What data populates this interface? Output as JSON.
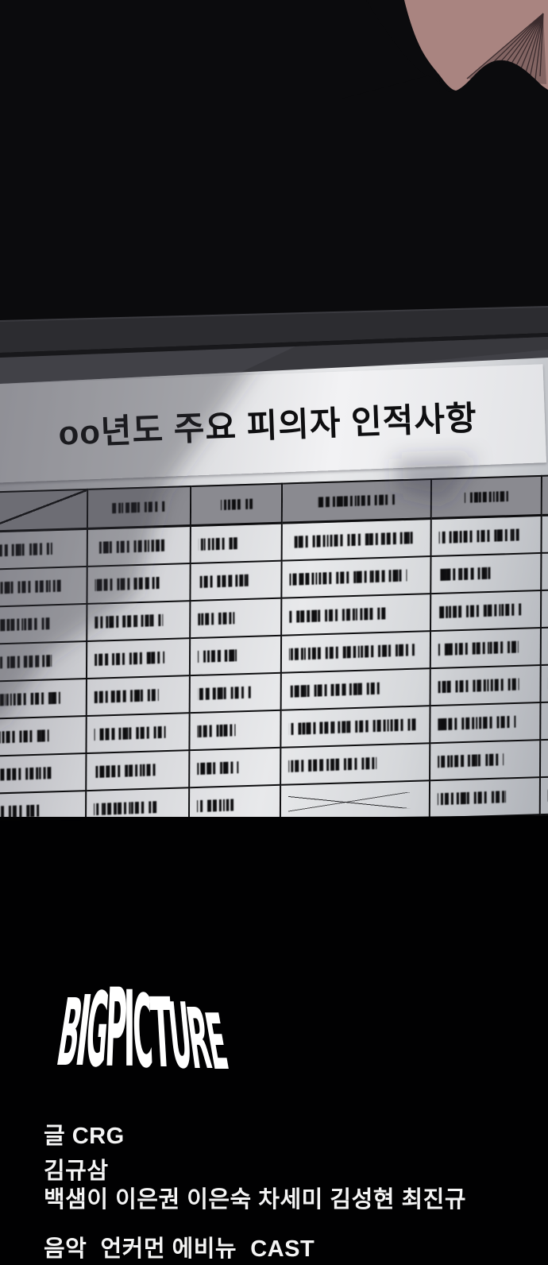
{
  "document": {
    "title": "oo년도 주요 피의자 인적사항",
    "table": {
      "first_header_cell": "empty-diagonal-slash",
      "content_style": "illegible-scribbled-text",
      "header_scribble_widths_pct": [
        0,
        62,
        42,
        58,
        46,
        0
      ],
      "row_scribble_widths_pct": [
        [
          70,
          80,
          52,
          92,
          85,
          35
        ],
        [
          80,
          74,
          70,
          88,
          58,
          25
        ],
        [
          68,
          78,
          50,
          74,
          88,
          40
        ],
        [
          70,
          80,
          52,
          94,
          85,
          30
        ],
        [
          80,
          74,
          70,
          70,
          86,
          45
        ],
        [
          68,
          82,
          50,
          95,
          82,
          0
        ],
        [
          70,
          74,
          55,
          66,
          70,
          35
        ],
        [
          58,
          72,
          48,
          0,
          72,
          28
        ]
      ],
      "x_mark_cell": {
        "row": 8,
        "col": 4
      }
    }
  },
  "logo": {
    "text": "BIGPICTURE",
    "color": "#ffffff"
  },
  "credits": {
    "writer_line": "글 CRG",
    "artist_line1": "김규삼",
    "artist_line2": "백샘이 이은권 이은숙 차세미 김성현 최진규",
    "music_cast_line": "음악  언커먼 에비뉴  CAST",
    "text_color": "#f4f4f4"
  },
  "colors": {
    "page_background": "#020203",
    "upper_background": "#0b0b0d",
    "skin": "#a98480",
    "desk_band_dark": "#2c2c30",
    "desk_band_mid": "#414147",
    "paper_light": "#e8e9eb",
    "paper_shadow": "#a9a9b0",
    "title_strip": "#f2f2f4",
    "table_line": "#0e0e10",
    "table_header_bg": "#8a8a90",
    "scribble_ink": "#0d0d0f"
  }
}
